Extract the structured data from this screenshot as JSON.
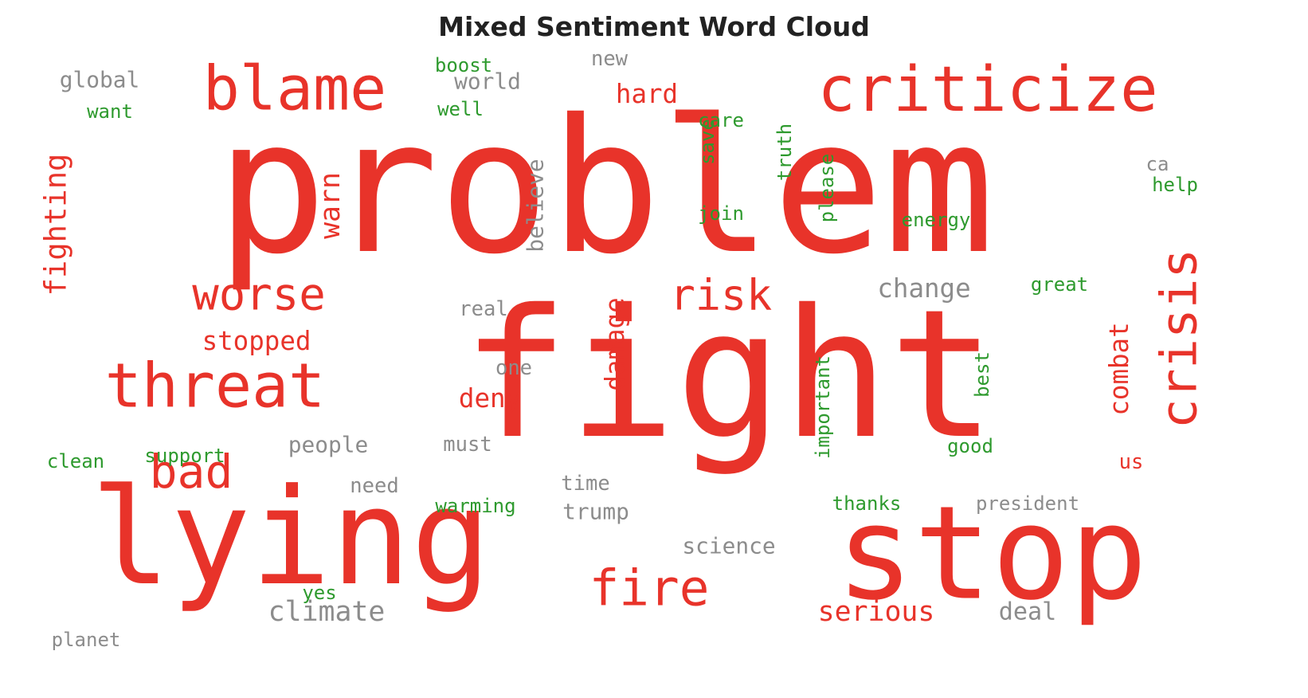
{
  "title": "Mixed Sentiment Word Cloud",
  "colors": {
    "negative": "#e8332a",
    "neutral": "#8c8c8c",
    "positive": "#2e9a2e"
  },
  "chart_data": {
    "type": "wordcloud",
    "title": "Mixed Sentiment Word Cloud",
    "words": [
      {
        "text": "problem",
        "weight": 100,
        "sentiment": "negative",
        "orientation": "horizontal"
      },
      {
        "text": "fight",
        "weight": 96,
        "sentiment": "negative",
        "orientation": "horizontal"
      },
      {
        "text": "lying",
        "weight": 72,
        "sentiment": "negative",
        "orientation": "horizontal"
      },
      {
        "text": "stop",
        "weight": 70,
        "sentiment": "negative",
        "orientation": "horizontal"
      },
      {
        "text": "criticize",
        "weight": 34,
        "sentiment": "negative",
        "orientation": "horizontal"
      },
      {
        "text": "blame",
        "weight": 33,
        "sentiment": "negative",
        "orientation": "horizontal"
      },
      {
        "text": "threat",
        "weight": 33,
        "sentiment": "negative",
        "orientation": "horizontal"
      },
      {
        "text": "crisis",
        "weight": 27,
        "sentiment": "negative",
        "orientation": "vertical"
      },
      {
        "text": "fire",
        "weight": 27,
        "sentiment": "negative",
        "orientation": "horizontal"
      },
      {
        "text": "bad",
        "weight": 25,
        "sentiment": "negative",
        "orientation": "horizontal"
      },
      {
        "text": "worse",
        "weight": 24,
        "sentiment": "negative",
        "orientation": "horizontal"
      },
      {
        "text": "risk",
        "weight": 23,
        "sentiment": "negative",
        "orientation": "horizontal"
      },
      {
        "text": "fighting",
        "weight": 16,
        "sentiment": "negative",
        "orientation": "vertical"
      },
      {
        "text": "serious",
        "weight": 15,
        "sentiment": "negative",
        "orientation": "horizontal"
      },
      {
        "text": "climate",
        "weight": 15,
        "sentiment": "neutral",
        "orientation": "horizontal"
      },
      {
        "text": "warn",
        "weight": 15,
        "sentiment": "negative",
        "orientation": "vertical"
      },
      {
        "text": "damage",
        "weight": 14,
        "sentiment": "negative",
        "orientation": "vertical"
      },
      {
        "text": "stopped",
        "weight": 14,
        "sentiment": "negative",
        "orientation": "horizontal"
      },
      {
        "text": "combat",
        "weight": 14,
        "sentiment": "negative",
        "orientation": "vertical"
      },
      {
        "text": "change",
        "weight": 14,
        "sentiment": "neutral",
        "orientation": "horizontal"
      },
      {
        "text": "hard",
        "weight": 14,
        "sentiment": "negative",
        "orientation": "horizontal"
      },
      {
        "text": "deny",
        "weight": 14,
        "sentiment": "negative",
        "orientation": "horizontal"
      },
      {
        "text": "deal",
        "weight": 13,
        "sentiment": "neutral",
        "orientation": "horizontal"
      },
      {
        "text": "world",
        "weight": 12,
        "sentiment": "neutral",
        "orientation": "horizontal"
      },
      {
        "text": "believe",
        "weight": 12,
        "sentiment": "neutral",
        "orientation": "vertical"
      },
      {
        "text": "people",
        "weight": 12,
        "sentiment": "neutral",
        "orientation": "horizontal"
      },
      {
        "text": "global",
        "weight": 12,
        "sentiment": "neutral",
        "orientation": "horizontal"
      },
      {
        "text": "science",
        "weight": 12,
        "sentiment": "neutral",
        "orientation": "horizontal"
      },
      {
        "text": "trump",
        "weight": 12,
        "sentiment": "neutral",
        "orientation": "horizontal"
      },
      {
        "text": "new",
        "weight": 11,
        "sentiment": "neutral",
        "orientation": "horizontal"
      },
      {
        "text": "real",
        "weight": 11,
        "sentiment": "neutral",
        "orientation": "horizontal"
      },
      {
        "text": "one",
        "weight": 11,
        "sentiment": "neutral",
        "orientation": "horizontal"
      },
      {
        "text": "must",
        "weight": 11,
        "sentiment": "neutral",
        "orientation": "horizontal"
      },
      {
        "text": "need",
        "weight": 11,
        "sentiment": "neutral",
        "orientation": "horizontal"
      },
      {
        "text": "time",
        "weight": 11,
        "sentiment": "neutral",
        "orientation": "horizontal"
      },
      {
        "text": "us",
        "weight": 11,
        "sentiment": "negative",
        "orientation": "horizontal"
      },
      {
        "text": "president",
        "weight": 6,
        "sentiment": "neutral",
        "orientation": "horizontal"
      },
      {
        "text": "planet",
        "weight": 6,
        "sentiment": "neutral",
        "orientation": "horizontal"
      },
      {
        "text": "ca",
        "weight": 6,
        "sentiment": "neutral",
        "orientation": "horizontal"
      },
      {
        "text": "boost",
        "weight": 6,
        "sentiment": "positive",
        "orientation": "horizontal"
      },
      {
        "text": "well",
        "weight": 6,
        "sentiment": "positive",
        "orientation": "horizontal"
      },
      {
        "text": "want",
        "weight": 6,
        "sentiment": "positive",
        "orientation": "horizontal"
      },
      {
        "text": "care",
        "weight": 6,
        "sentiment": "positive",
        "orientation": "horizontal"
      },
      {
        "text": "save",
        "weight": 6,
        "sentiment": "positive",
        "orientation": "vertical"
      },
      {
        "text": "truth",
        "weight": 6,
        "sentiment": "positive",
        "orientation": "vertical"
      },
      {
        "text": "please",
        "weight": 6,
        "sentiment": "positive",
        "orientation": "vertical"
      },
      {
        "text": "help",
        "weight": 6,
        "sentiment": "positive",
        "orientation": "horizontal"
      },
      {
        "text": "join",
        "weight": 6,
        "sentiment": "positive",
        "orientation": "horizontal"
      },
      {
        "text": "energy",
        "weight": 6,
        "sentiment": "positive",
        "orientation": "horizontal"
      },
      {
        "text": "great",
        "weight": 6,
        "sentiment": "positive",
        "orientation": "horizontal"
      },
      {
        "text": "important",
        "weight": 6,
        "sentiment": "positive",
        "orientation": "vertical"
      },
      {
        "text": "best",
        "weight": 6,
        "sentiment": "positive",
        "orientation": "vertical"
      },
      {
        "text": "good",
        "weight": 6,
        "sentiment": "positive",
        "orientation": "horizontal"
      },
      {
        "text": "thanks",
        "weight": 6,
        "sentiment": "positive",
        "orientation": "horizontal"
      },
      {
        "text": "warming",
        "weight": 6,
        "sentiment": "positive",
        "orientation": "horizontal"
      },
      {
        "text": "clean",
        "weight": 6,
        "sentiment": "positive",
        "orientation": "horizontal"
      },
      {
        "text": "support",
        "weight": 6,
        "sentiment": "positive",
        "orientation": "horizontal"
      },
      {
        "text": "yes",
        "weight": 6,
        "sentiment": "positive",
        "orientation": "horizontal"
      }
    ]
  }
}
